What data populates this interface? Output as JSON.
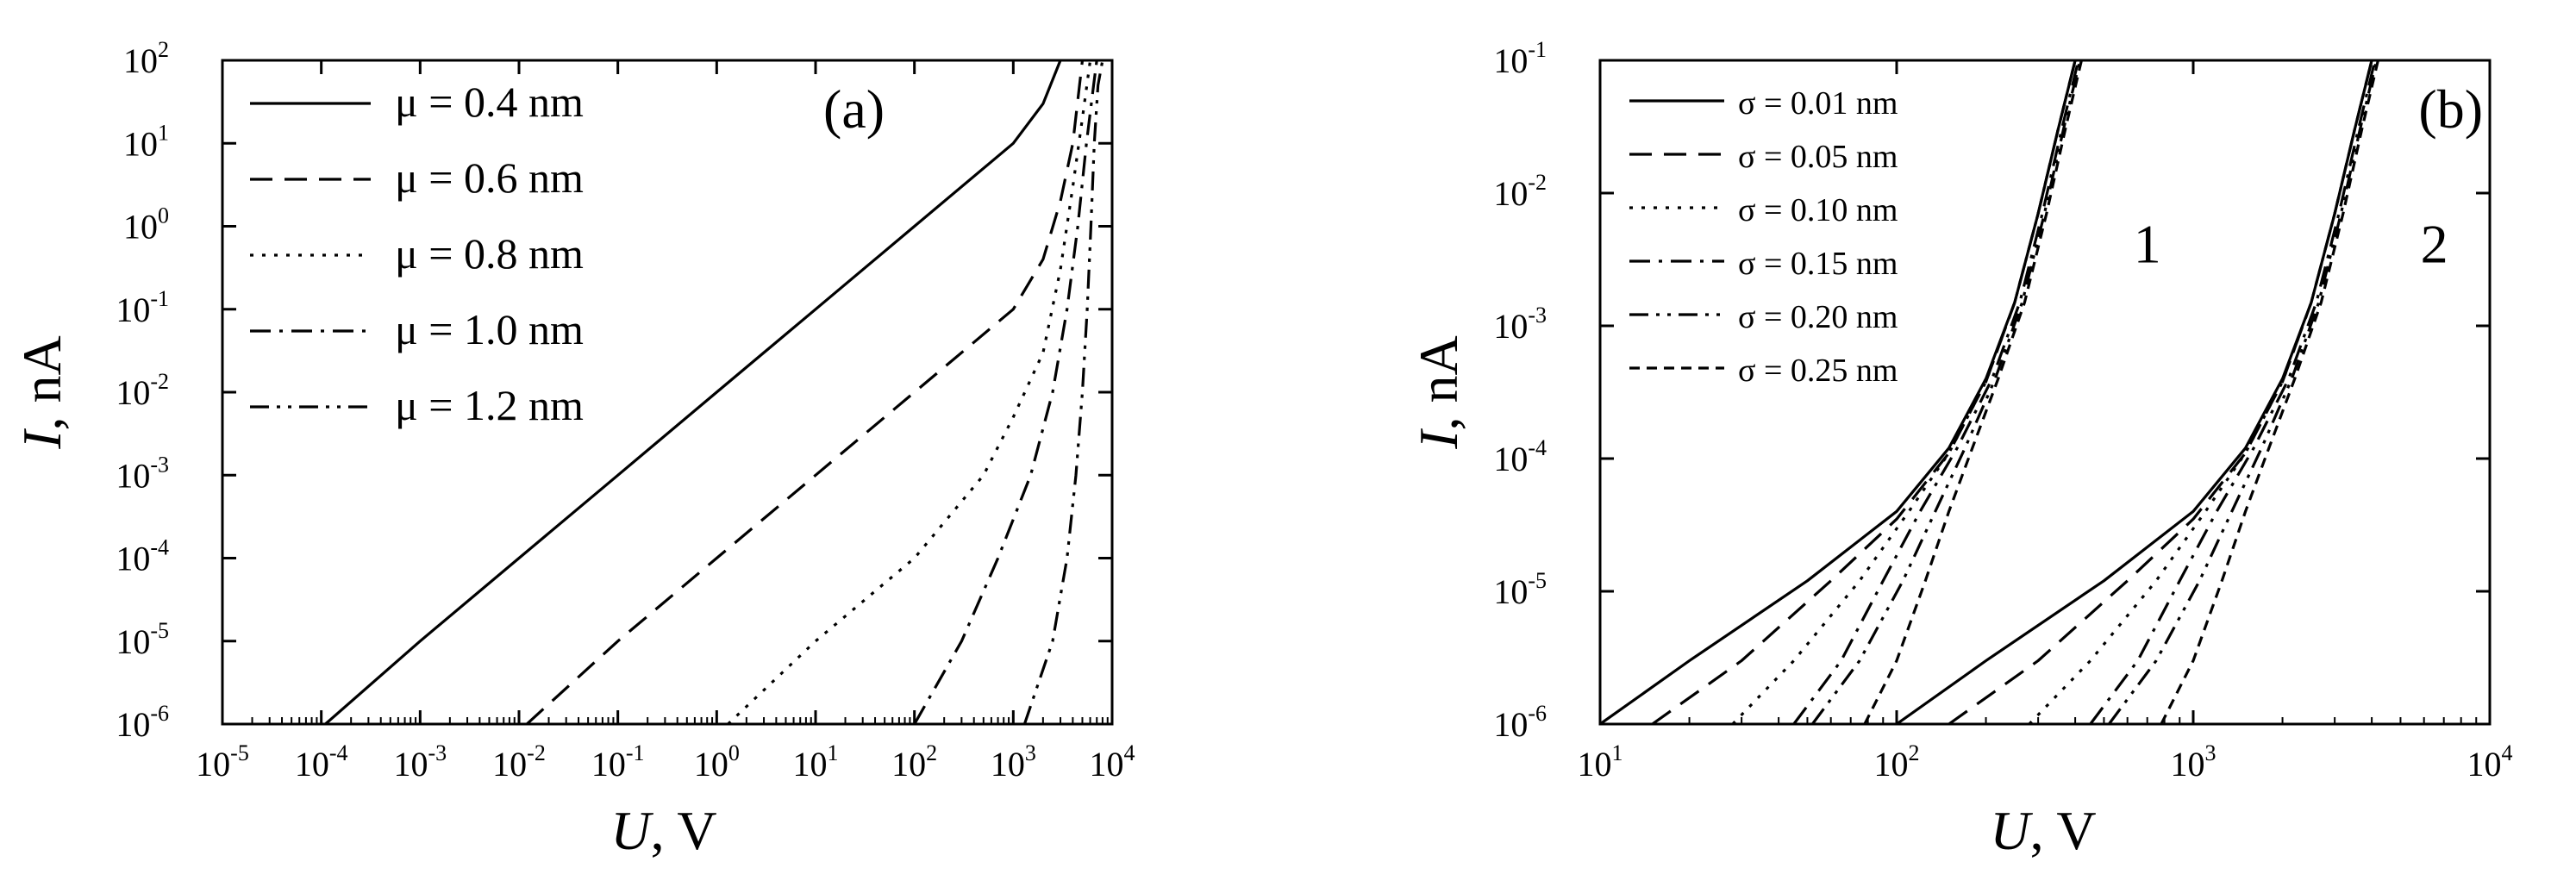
{
  "chart_data": [
    {
      "type": "line",
      "panel_label": "(a)",
      "xlabel": {
        "var": "U",
        "unit": ", V"
      },
      "ylabel": {
        "var": "I",
        "unit": ", nA"
      },
      "xscale": "log",
      "yscale": "log",
      "xlim": [
        1e-05,
        10000.0
      ],
      "ylim": [
        1e-06,
        100.0
      ],
      "xticks": [
        -5,
        -4,
        -3,
        -2,
        -1,
        0,
        1,
        2,
        3,
        4
      ],
      "yticks": [
        -6,
        -5,
        -4,
        -3,
        -2,
        -1,
        0,
        1,
        2
      ],
      "tick_base": "10",
      "grid": false,
      "legend_position": "top-left",
      "series": [
        {
          "name": "μ = 0.4 nm",
          "dash": "solid",
          "x": [
            0.00011,
            0.001,
            0.01,
            0.1,
            1,
            10,
            100,
            1000,
            2000,
            3000
          ],
          "y": [
            1e-06,
            1e-05,
            0.0001,
            0.001,
            0.01,
            0.1,
            1,
            10,
            30,
            100
          ]
        },
        {
          "name": "μ = 0.6 nm",
          "dash": "dash",
          "x": [
            0.012,
            0.1,
            1,
            10,
            100,
            1000,
            2000,
            3000,
            4000,
            5000
          ],
          "y": [
            1e-06,
            1e-05,
            0.0001,
            0.001,
            0.01,
            0.1,
            0.4,
            2,
            10,
            100
          ]
        },
        {
          "name": "μ = 0.8 nm",
          "dash": "dot",
          "x": [
            1.3,
            10,
            100,
            500,
            1000,
            2000,
            3000,
            4000,
            5000,
            6000
          ],
          "y": [
            1e-06,
            1e-05,
            0.0001,
            0.001,
            0.005,
            0.03,
            0.3,
            3,
            20,
            100
          ]
        },
        {
          "name": "μ = 1.0 nm",
          "dash": "dashdot",
          "x": [
            100,
            300,
            700,
            1500,
            2500,
            3500,
            4500,
            5500,
            6500,
            7000
          ],
          "y": [
            1e-06,
            1e-05,
            0.0001,
            0.001,
            0.01,
            0.1,
            1,
            10,
            50,
            100
          ]
        },
        {
          "name": "μ = 1.2 nm",
          "dash": "dashdotdot",
          "x": [
            1300,
            2500,
            3500,
            4300,
            5000,
            5600,
            6100,
            6600,
            7200,
            8000
          ],
          "y": [
            1e-06,
            1e-05,
            0.0001,
            0.001,
            0.01,
            0.1,
            1,
            10,
            50,
            100
          ]
        }
      ]
    },
    {
      "type": "line",
      "panel_label": "(b)",
      "xlabel": {
        "var": "U",
        "unit": ", V"
      },
      "ylabel": {
        "var": "I",
        "unit": ", nA"
      },
      "xscale": "log",
      "yscale": "log",
      "xlim": [
        10,
        10000
      ],
      "ylim": [
        1e-06,
        0.1
      ],
      "xticks": [
        1,
        2,
        3,
        4
      ],
      "yticks": [
        -6,
        -5,
        -4,
        -3,
        -2,
        -1
      ],
      "tick_base": "10",
      "grid": false,
      "legend_position": "top-left",
      "curve_labels": [
        {
          "text": "1",
          "x": 700,
          "y": 0.003
        },
        {
          "text": "2",
          "x": 6500,
          "y": 0.003
        }
      ],
      "series": [
        {
          "name": "σ = 0.01 nm",
          "dash": "solid",
          "group": "1",
          "x": [
            10,
            20,
            50,
            100,
            150,
            200,
            250,
            300,
            350,
            400
          ],
          "y": [
            1e-06,
            3e-06,
            1.2e-05,
            4e-05,
            0.00012,
            0.0004,
            0.0015,
            0.007,
            0.03,
            0.1
          ]
        },
        {
          "name": "σ = 0.05 nm",
          "dash": "dash",
          "group": "1",
          "x": [
            15,
            30,
            60,
            100,
            150,
            200,
            250,
            300,
            350,
            400
          ],
          "y": [
            1e-06,
            3e-06,
            1.2e-05,
            3.5e-05,
            0.00011,
            0.00038,
            0.0015,
            0.007,
            0.03,
            0.1
          ]
        },
        {
          "name": "σ = 0.10 nm",
          "dash": "dot",
          "group": "1",
          "x": [
            28,
            45,
            75,
            110,
            150,
            200,
            250,
            300,
            350,
            400
          ],
          "y": [
            1e-06,
            3e-06,
            1.2e-05,
            4e-05,
            0.00011,
            0.00038,
            0.0015,
            0.007,
            0.03,
            0.1
          ]
        },
        {
          "name": "σ = 0.15 nm",
          "dash": "dashdot",
          "group": "1",
          "x": [
            45,
            65,
            90,
            120,
            160,
            210,
            260,
            310,
            360,
            410
          ],
          "y": [
            1e-06,
            3e-06,
            1.2e-05,
            4e-05,
            0.00012,
            0.0004,
            0.0015,
            0.007,
            0.03,
            0.1
          ]
        },
        {
          "name": "σ = 0.20 nm",
          "dash": "dashdotdot",
          "group": "1",
          "x": [
            52,
            75,
            105,
            135,
            170,
            215,
            265,
            315,
            365,
            415
          ],
          "y": [
            1e-06,
            3e-06,
            1.2e-05,
            4e-05,
            0.00012,
            0.0004,
            0.0015,
            0.007,
            0.03,
            0.1
          ]
        },
        {
          "name": "σ = 0.25 nm",
          "dash": "shortdash",
          "group": "1",
          "x": [
            78,
            100,
            125,
            150,
            180,
            220,
            270,
            320,
            370,
            420
          ],
          "y": [
            1e-06,
            3e-06,
            1.2e-05,
            4e-05,
            0.00012,
            0.0004,
            0.0015,
            0.007,
            0.03,
            0.1
          ]
        },
        {
          "group": "2",
          "dash": "solid",
          "x": [
            100,
            200,
            500,
            1000,
            1500,
            2000,
            2500,
            3000,
            3500,
            4000
          ],
          "y": [
            1e-06,
            3e-06,
            1.2e-05,
            4e-05,
            0.00012,
            0.0004,
            0.0015,
            0.007,
            0.03,
            0.1
          ]
        },
        {
          "group": "2",
          "dash": "dash",
          "x": [
            150,
            300,
            600,
            1000,
            1500,
            2000,
            2500,
            3000,
            3500,
            4000
          ],
          "y": [
            1e-06,
            3e-06,
            1.2e-05,
            3.5e-05,
            0.00011,
            0.00038,
            0.0015,
            0.007,
            0.03,
            0.1
          ]
        },
        {
          "group": "2",
          "dash": "dot",
          "x": [
            280,
            450,
            750,
            1100,
            1500,
            2000,
            2500,
            3000,
            3500,
            4000
          ],
          "y": [
            1e-06,
            3e-06,
            1.2e-05,
            4e-05,
            0.00011,
            0.00038,
            0.0015,
            0.007,
            0.03,
            0.1
          ]
        },
        {
          "group": "2",
          "dash": "dashdot",
          "x": [
            450,
            650,
            900,
            1200,
            1600,
            2100,
            2600,
            3100,
            3600,
            4100
          ],
          "y": [
            1e-06,
            3e-06,
            1.2e-05,
            4e-05,
            0.00012,
            0.0004,
            0.0015,
            0.007,
            0.03,
            0.1
          ]
        },
        {
          "group": "2",
          "dash": "dashdotdot",
          "x": [
            520,
            750,
            1050,
            1350,
            1700,
            2150,
            2650,
            3150,
            3650,
            4150
          ],
          "y": [
            1e-06,
            3e-06,
            1.2e-05,
            4e-05,
            0.00012,
            0.0004,
            0.0015,
            0.007,
            0.03,
            0.1
          ]
        },
        {
          "group": "2",
          "dash": "shortdash",
          "x": [
            780,
            1000,
            1250,
            1500,
            1800,
            2200,
            2700,
            3200,
            3700,
            4200
          ],
          "y": [
            1e-06,
            3e-06,
            1.2e-05,
            4e-05,
            0.00012,
            0.0004,
            0.0015,
            0.007,
            0.03,
            0.1
          ]
        }
      ]
    }
  ]
}
